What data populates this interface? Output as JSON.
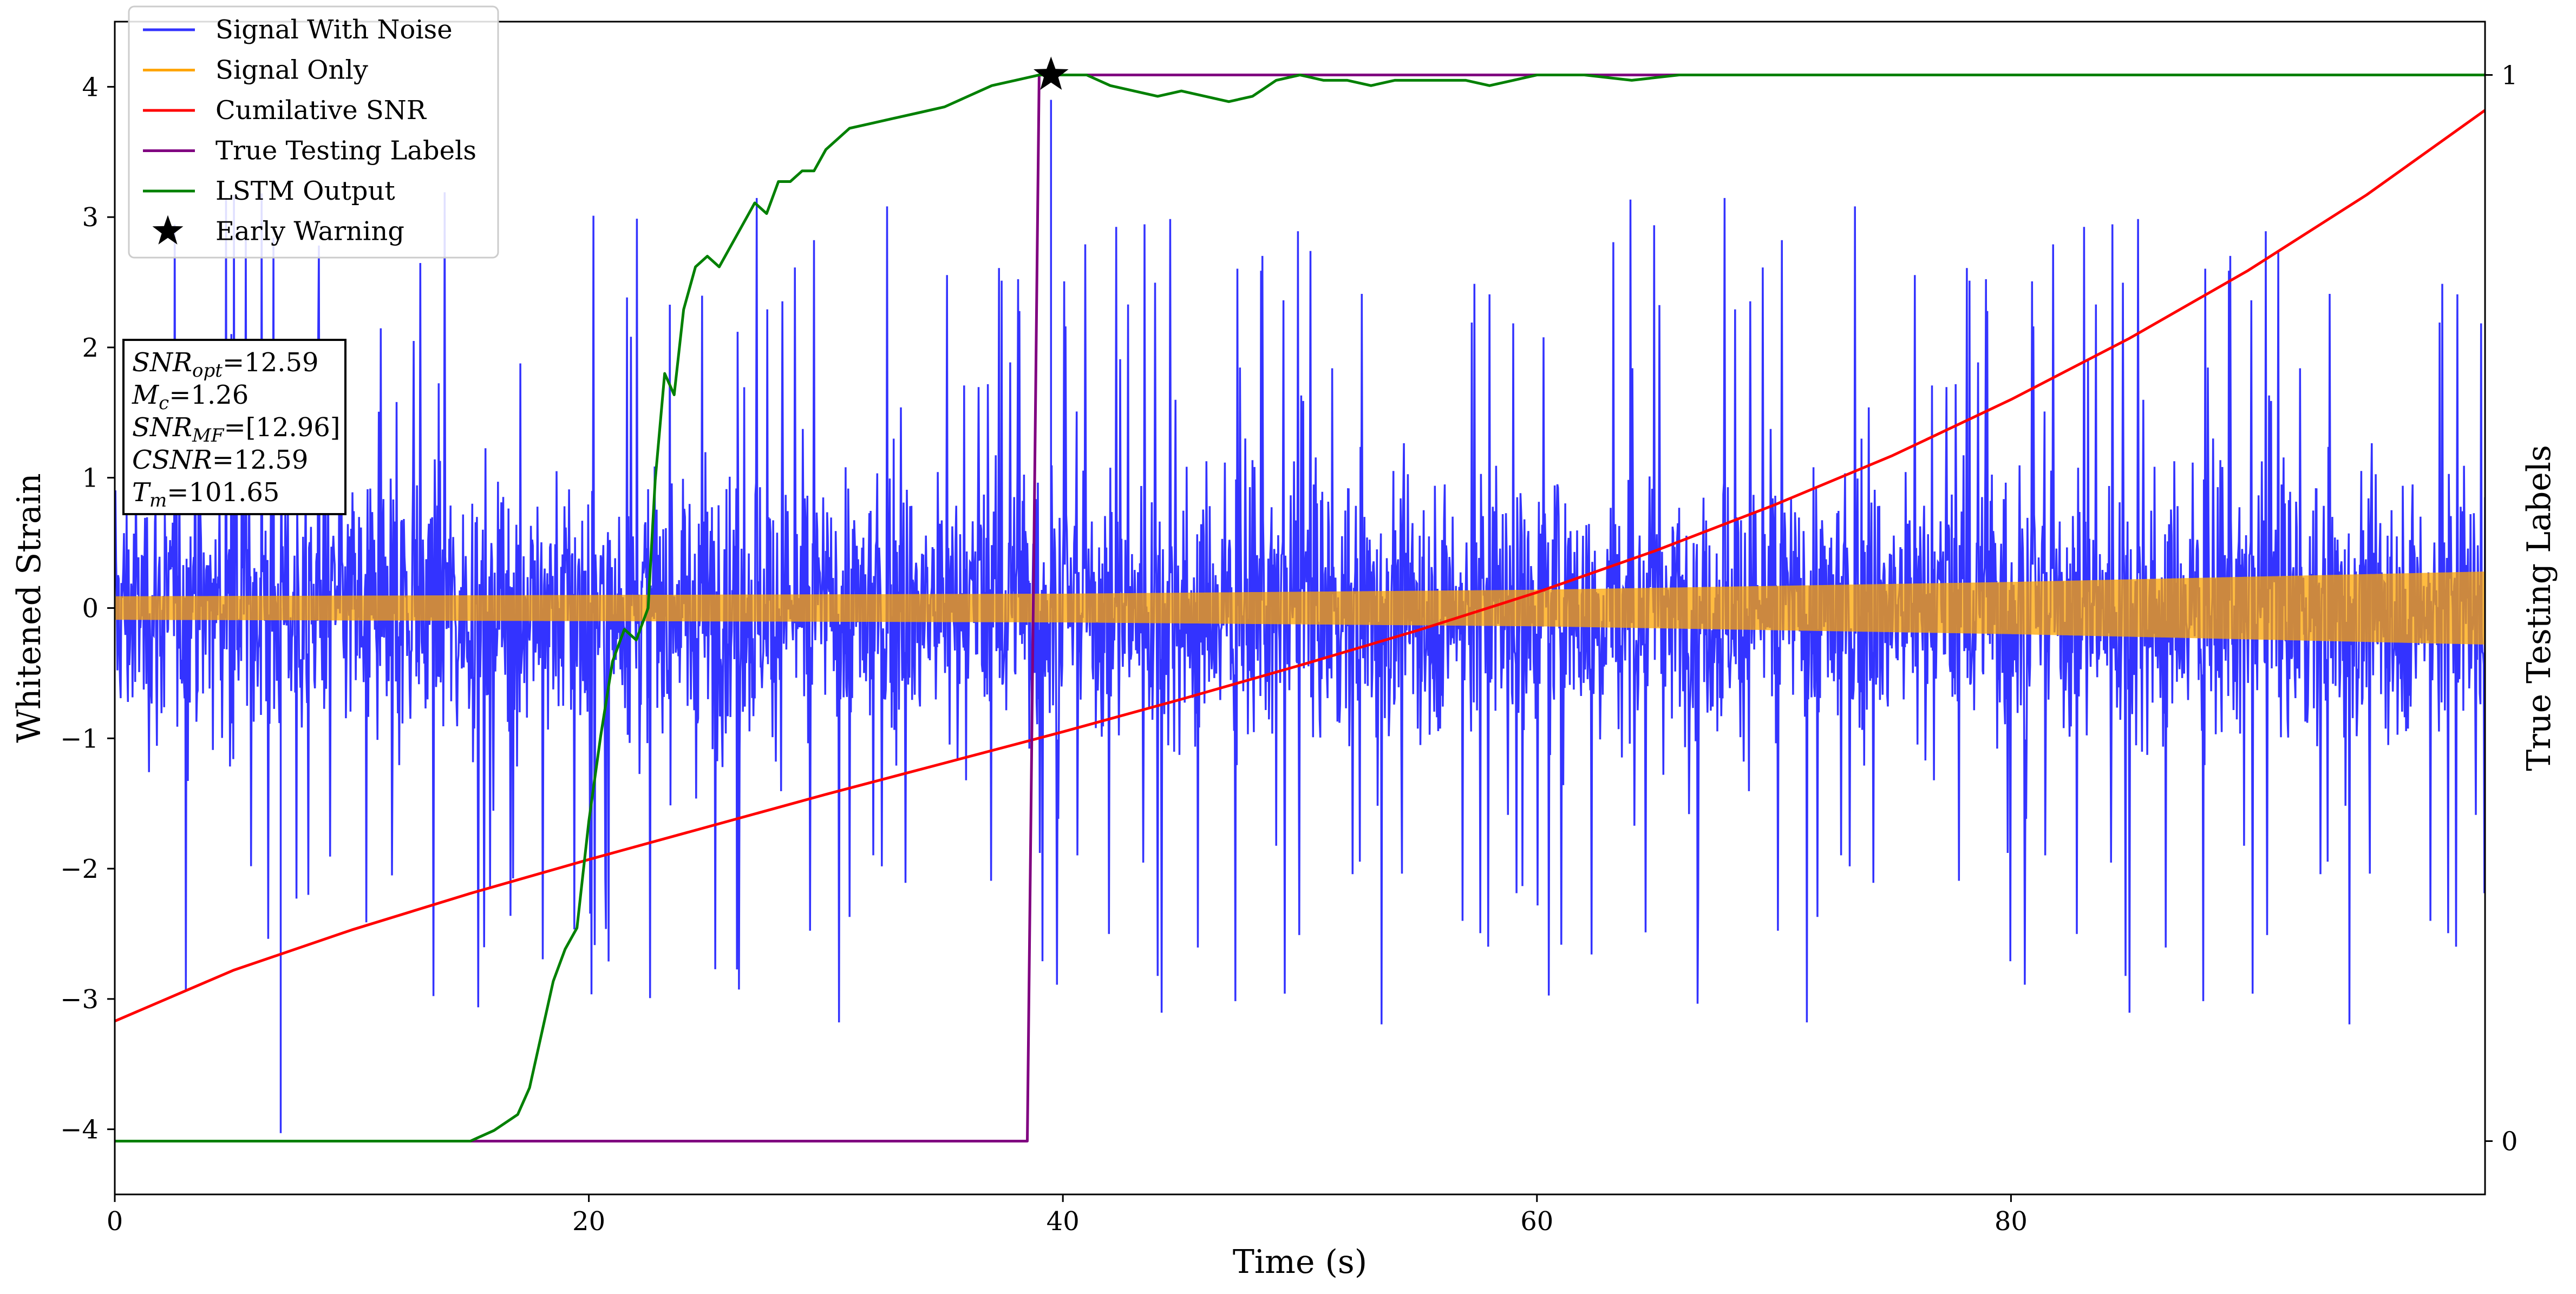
{
  "chart_data": {
    "type": "line",
    "xlabel": "Time (s)",
    "ylabel": "Whitened Strain",
    "ylabel_right": "True Testing Labels",
    "xlim": [
      0,
      100
    ],
    "ylim": [
      -4.5,
      4.5
    ],
    "ylim_right": [
      -0.05,
      1.05
    ],
    "x_ticks": [
      0,
      20,
      40,
      60,
      80
    ],
    "x_tick_labels": [
      "0",
      "20",
      "40",
      "60",
      "80"
    ],
    "y_ticks": [
      -4,
      -3,
      -2,
      -1,
      0,
      1,
      2,
      3,
      4
    ],
    "y_tick_labels": [
      "−4",
      "−3",
      "−2",
      "−1",
      "0",
      "1",
      "2",
      "3",
      "4"
    ],
    "y_right_ticks": [
      0,
      1
    ],
    "y_right_tick_labels": [
      "0",
      "1"
    ],
    "legend": {
      "placement": "upper-left",
      "entries": [
        {
          "label": "Signal With Noise",
          "color": "#3333ff",
          "marker": "line"
        },
        {
          "label": "Signal Only",
          "color": "#ffa500",
          "marker": "line"
        },
        {
          "label": "Cumilative SNR",
          "color": "#ff0000",
          "marker": "line"
        },
        {
          "label": "True Testing Labels",
          "color": "#800080",
          "marker": "line"
        },
        {
          "label": "LSTM Output",
          "color": "#008000",
          "marker": "line"
        },
        {
          "label": "Early Warning",
          "color": "#000000",
          "marker": "star"
        }
      ]
    },
    "annotation": {
      "lines": [
        {
          "var": "SNR",
          "sub": "opt",
          "value": "=12.59"
        },
        {
          "var": "M",
          "sub": "c",
          "value": "=1.26"
        },
        {
          "var": "SNR",
          "sub": "MF",
          "value": "=[12.96]"
        },
        {
          "var": "CSNR",
          "sub": "",
          "value": "=12.59"
        },
        {
          "var": "T",
          "sub": "m",
          "value": "=101.65"
        }
      ]
    },
    "series": [
      {
        "name": "Signal With Noise",
        "color": "#3333ff",
        "axis": "left",
        "style": "noise-band",
        "x_range": [
          0,
          100
        ],
        "typical_amplitude": 0.9,
        "peak_amplitude": 3.2,
        "outliers": [
          {
            "x": 7,
            "y": -4.03
          },
          {
            "x": 39.5,
            "y": 3.9
          }
        ]
      },
      {
        "name": "Signal Only",
        "color": "#ffa500",
        "axis": "left",
        "style": "chirp-band",
        "x_range": [
          0,
          100
        ],
        "amplitude": [
          [
            0,
            0.09
          ],
          [
            40,
            0.11
          ],
          [
            60,
            0.14
          ],
          [
            80,
            0.2
          ],
          [
            100,
            0.28
          ]
        ]
      },
      {
        "name": "Cumilative SNR",
        "color": "#ff0000",
        "axis": "left",
        "x": [
          0,
          5,
          10,
          15,
          20,
          25,
          30,
          35,
          40,
          45,
          50,
          55,
          60,
          65,
          70,
          75,
          80,
          85,
          90,
          95,
          100
        ],
        "y": [
          -3.17,
          -2.78,
          -2.47,
          -2.19,
          -1.93,
          -1.68,
          -1.43,
          -1.19,
          -0.95,
          -0.7,
          -0.44,
          -0.17,
          0.12,
          0.44,
          0.79,
          1.17,
          1.6,
          2.07,
          2.59,
          3.17,
          3.82
        ]
      },
      {
        "name": "True Testing Labels",
        "color": "#800080",
        "axis": "right",
        "x": [
          0,
          38.5,
          39.0,
          100
        ],
        "y": [
          0,
          0,
          1,
          1
        ]
      },
      {
        "name": "LSTM Output",
        "color": "#008000",
        "axis": "right",
        "x": [
          0,
          15,
          16,
          17,
          17.5,
          18,
          18.5,
          19,
          19.5,
          20,
          20.5,
          21,
          21.5,
          22,
          22.5,
          22.8,
          23.2,
          23.6,
          24,
          24.5,
          25,
          25.5,
          26,
          26.5,
          27,
          27.5,
          28,
          28.5,
          29,
          29.5,
          30,
          31,
          32,
          33,
          34,
          35,
          36,
          37,
          38,
          39,
          40,
          41,
          42,
          43,
          44,
          45,
          46,
          47,
          48,
          49,
          50,
          51,
          52,
          53,
          54,
          55,
          56,
          57,
          58,
          59,
          60,
          62,
          64,
          66,
          68,
          70,
          75,
          80,
          85,
          90,
          95,
          100
        ],
        "y": [
          0,
          0,
          0.01,
          0.025,
          0.05,
          0.1,
          0.15,
          0.18,
          0.2,
          0.3,
          0.38,
          0.45,
          0.48,
          0.47,
          0.5,
          0.62,
          0.72,
          0.7,
          0.78,
          0.82,
          0.83,
          0.82,
          0.84,
          0.86,
          0.88,
          0.87,
          0.9,
          0.9,
          0.91,
          0.91,
          0.93,
          0.95,
          0.955,
          0.96,
          0.965,
          0.97,
          0.98,
          0.99,
          0.995,
          1.0,
          1.0,
          1.0,
          0.99,
          0.985,
          0.98,
          0.985,
          0.98,
          0.975,
          0.98,
          0.995,
          1.0,
          0.995,
          0.995,
          0.99,
          0.995,
          0.995,
          0.995,
          0.995,
          0.99,
          0.995,
          1.0,
          1.0,
          0.995,
          1.0,
          1.0,
          1.0,
          1.0,
          1.0,
          1.0,
          1.0,
          1.0,
          1.0
        ]
      }
    ],
    "early_warning": {
      "x": 39.5,
      "y": 1.0,
      "axis": "right"
    }
  }
}
